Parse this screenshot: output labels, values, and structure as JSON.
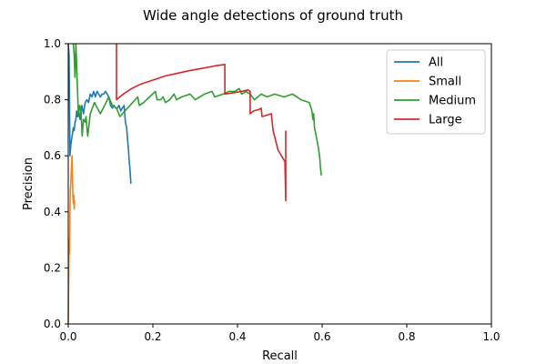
{
  "chart_data": {
    "type": "line",
    "title": "Wide angle detections of ground truth",
    "xlabel": "Recall",
    "ylabel": "Precision",
    "xlim": [
      0,
      1
    ],
    "ylim": [
      0,
      1
    ],
    "xticks": [
      "0.0",
      "0.2",
      "0.4",
      "0.6",
      "0.8",
      "1.0"
    ],
    "yticks": [
      "0.0",
      "0.2",
      "0.4",
      "0.6",
      "0.8",
      "1.0"
    ],
    "grid": false,
    "legend_position": "top-right",
    "series": [
      {
        "name": "All",
        "color": "#1f77b4",
        "points": [
          [
            0.0,
            1.0
          ],
          [
            0.002,
            0.96
          ],
          [
            0.004,
            0.6
          ],
          [
            0.006,
            0.64
          ],
          [
            0.008,
            0.66
          ],
          [
            0.01,
            0.68
          ],
          [
            0.012,
            0.7
          ],
          [
            0.014,
            0.69
          ],
          [
            0.016,
            0.72
          ],
          [
            0.018,
            0.73
          ],
          [
            0.02,
            0.76
          ],
          [
            0.022,
            0.74
          ],
          [
            0.025,
            0.76
          ],
          [
            0.028,
            0.73
          ],
          [
            0.032,
            0.78
          ],
          [
            0.036,
            0.75
          ],
          [
            0.04,
            0.79
          ],
          [
            0.044,
            0.8
          ],
          [
            0.048,
            0.79
          ],
          [
            0.052,
            0.82
          ],
          [
            0.056,
            0.81
          ],
          [
            0.06,
            0.83
          ],
          [
            0.064,
            0.81
          ],
          [
            0.068,
            0.83
          ],
          [
            0.072,
            0.82
          ],
          [
            0.076,
            0.81
          ],
          [
            0.08,
            0.82
          ],
          [
            0.084,
            0.82
          ],
          [
            0.088,
            0.83
          ],
          [
            0.092,
            0.82
          ],
          [
            0.096,
            0.81
          ],
          [
            0.1,
            0.78
          ],
          [
            0.104,
            0.77
          ],
          [
            0.108,
            0.78
          ],
          [
            0.112,
            0.77
          ],
          [
            0.116,
            0.77
          ],
          [
            0.12,
            0.78
          ],
          [
            0.124,
            0.76
          ],
          [
            0.128,
            0.77
          ],
          [
            0.132,
            0.78
          ],
          [
            0.135,
            0.72
          ],
          [
            0.138,
            0.7
          ],
          [
            0.14,
            0.66
          ],
          [
            0.142,
            0.63
          ],
          [
            0.144,
            0.58
          ],
          [
            0.146,
            0.55
          ],
          [
            0.148,
            0.5
          ]
        ]
      },
      {
        "name": "Small",
        "color": "#ff7f0e",
        "points": [
          [
            0.0,
            0.0
          ],
          [
            0.002,
            0.3
          ],
          [
            0.003,
            0.25
          ],
          [
            0.004,
            0.4
          ],
          [
            0.005,
            0.48
          ],
          [
            0.006,
            0.5
          ],
          [
            0.008,
            0.57
          ],
          [
            0.009,
            0.6
          ],
          [
            0.01,
            0.52
          ],
          [
            0.011,
            0.45
          ],
          [
            0.012,
            0.43
          ],
          [
            0.013,
            0.46
          ],
          [
            0.014,
            0.41
          ],
          [
            0.015,
            0.44
          ]
        ]
      },
      {
        "name": "Medium",
        "color": "#2ca02c",
        "points": [
          [
            0.012,
            1.0
          ],
          [
            0.014,
            0.96
          ],
          [
            0.016,
            0.88
          ],
          [
            0.018,
            1.0
          ],
          [
            0.021,
            0.87
          ],
          [
            0.024,
            0.74
          ],
          [
            0.027,
            0.78
          ],
          [
            0.03,
            0.76
          ],
          [
            0.033,
            0.67
          ],
          [
            0.036,
            0.73
          ],
          [
            0.04,
            0.72
          ],
          [
            0.042,
            0.74
          ],
          [
            0.044,
            0.7
          ],
          [
            0.046,
            0.67
          ],
          [
            0.052,
            0.75
          ],
          [
            0.062,
            0.79
          ],
          [
            0.076,
            0.75
          ],
          [
            0.086,
            0.78
          ],
          [
            0.096,
            0.81
          ],
          [
            0.104,
            0.78
          ],
          [
            0.114,
            0.77
          ],
          [
            0.122,
            0.74
          ],
          [
            0.134,
            0.76
          ],
          [
            0.146,
            0.78
          ],
          [
            0.158,
            0.8
          ],
          [
            0.164,
            0.81
          ],
          [
            0.168,
            0.78
          ],
          [
            0.178,
            0.79
          ],
          [
            0.192,
            0.81
          ],
          [
            0.206,
            0.83
          ],
          [
            0.21,
            0.8
          ],
          [
            0.218,
            0.8
          ],
          [
            0.224,
            0.81
          ],
          [
            0.23,
            0.79
          ],
          [
            0.24,
            0.8
          ],
          [
            0.25,
            0.82
          ],
          [
            0.256,
            0.8
          ],
          [
            0.268,
            0.81
          ],
          [
            0.288,
            0.82
          ],
          [
            0.3,
            0.8
          ],
          [
            0.322,
            0.82
          ],
          [
            0.34,
            0.83
          ],
          [
            0.346,
            0.81
          ],
          [
            0.366,
            0.82
          ],
          [
            0.38,
            0.83
          ],
          [
            0.394,
            0.83
          ],
          [
            0.404,
            0.84
          ],
          [
            0.41,
            0.82
          ],
          [
            0.42,
            0.83
          ],
          [
            0.43,
            0.82
          ],
          [
            0.44,
            0.8
          ],
          [
            0.456,
            0.82
          ],
          [
            0.47,
            0.81
          ],
          [
            0.488,
            0.82
          ],
          [
            0.51,
            0.81
          ],
          [
            0.53,
            0.82
          ],
          [
            0.55,
            0.8
          ],
          [
            0.57,
            0.79
          ],
          [
            0.576,
            0.76
          ],
          [
            0.578,
            0.73
          ],
          [
            0.58,
            0.75
          ],
          [
            0.582,
            0.7
          ],
          [
            0.586,
            0.67
          ],
          [
            0.59,
            0.64
          ],
          [
            0.594,
            0.6
          ],
          [
            0.596,
            0.56
          ],
          [
            0.598,
            0.53
          ]
        ]
      },
      {
        "name": "Large",
        "color": "#d62728",
        "points": [
          [
            0.114,
            1.0
          ],
          [
            0.114,
            0.8
          ],
          [
            0.13,
            0.82
          ],
          [
            0.15,
            0.84
          ],
          [
            0.17,
            0.855
          ],
          [
            0.2,
            0.87
          ],
          [
            0.23,
            0.885
          ],
          [
            0.26,
            0.895
          ],
          [
            0.29,
            0.905
          ],
          [
            0.32,
            0.913
          ],
          [
            0.345,
            0.92
          ],
          [
            0.37,
            0.926
          ],
          [
            0.37,
            0.82
          ],
          [
            0.39,
            0.825
          ],
          [
            0.41,
            0.83
          ],
          [
            0.425,
            0.835
          ],
          [
            0.43,
            0.83
          ],
          [
            0.43,
            0.75
          ],
          [
            0.438,
            0.76
          ],
          [
            0.45,
            0.765
          ],
          [
            0.456,
            0.77
          ],
          [
            0.458,
            0.74
          ],
          [
            0.47,
            0.745
          ],
          [
            0.48,
            0.75
          ],
          [
            0.484,
            0.69
          ],
          [
            0.496,
            0.62
          ],
          [
            0.512,
            0.58
          ],
          [
            0.514,
            0.44
          ],
          [
            0.514,
            0.69
          ]
        ]
      }
    ]
  }
}
